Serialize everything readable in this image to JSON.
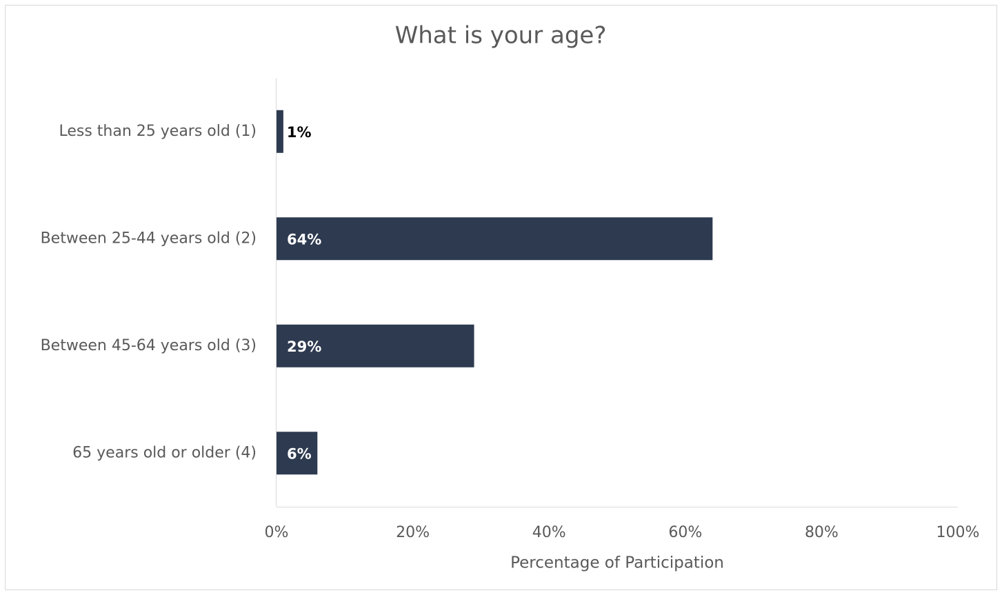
{
  "chart_data": {
    "type": "bar",
    "orientation": "horizontal",
    "title": "What is your age?",
    "x_label": "Percentage of Participation",
    "categories": [
      "Less than 25 years old (1)",
      "Between 25-44 years old (2)",
      "Between 45-64 years old (3)",
      "65 years old or older (4)"
    ],
    "values": [
      1,
      64,
      29,
      6
    ],
    "value_labels": [
      "1%",
      "64%",
      "29%",
      "6%"
    ],
    "color": "#2e3a50",
    "xlim": [
      0,
      100
    ],
    "xticks": [
      {
        "value": 0,
        "label": "0%"
      },
      {
        "value": 20,
        "label": "20%"
      },
      {
        "value": 40,
        "label": "40%"
      },
      {
        "value": 60,
        "label": "60%"
      },
      {
        "value": 80,
        "label": "80%"
      },
      {
        "value": 100,
        "label": "100%"
      }
    ],
    "grid": false
  }
}
